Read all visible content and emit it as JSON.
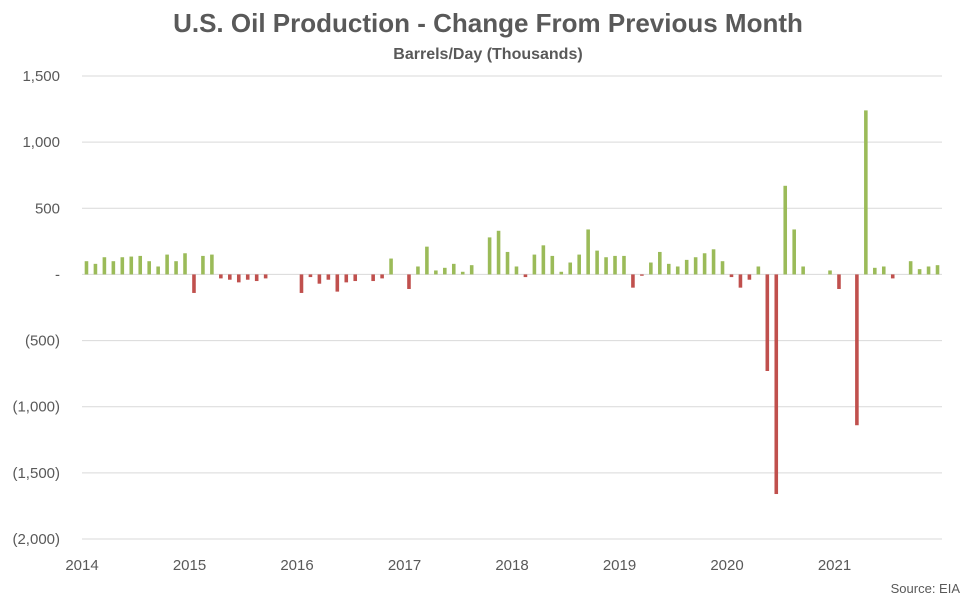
{
  "chart_data": {
    "type": "bar",
    "title": "U.S. Oil Production - Change From Previous Month",
    "subtitle": "Barrels/Day (Thousands)",
    "source": "Source: EIA",
    "ylim": [
      -2000,
      1500
    ],
    "y_ticks": [
      1500,
      1000,
      500,
      0,
      -500,
      -1000,
      -1500,
      -2000
    ],
    "y_tick_labels": [
      "1,500",
      "1,000",
      "500",
      "-",
      "(500)",
      "(1,000)",
      "(1,500)",
      "(2,000)"
    ],
    "x_tick_labels": [
      "2014",
      "2015",
      "2016",
      "2017",
      "2018",
      "2019",
      "2020",
      "2021"
    ],
    "grid": true,
    "colors": {
      "positive": "#9BBB59",
      "negative": "#C0504D",
      "grid": "#D9D9D9",
      "text": "#595959"
    },
    "categories": [
      "Jan 2014",
      "Feb 2014",
      "Mar 2014",
      "Apr 2014",
      "May 2014",
      "Jun 2014",
      "Jul 2014",
      "Aug 2014",
      "Sep 2014",
      "Oct 2014",
      "Nov 2014",
      "Dec 2014",
      "Jan 2015",
      "Feb 2015",
      "Mar 2015",
      "Apr 2015",
      "May 2015",
      "Jun 2015",
      "Jul 2015",
      "Aug 2015",
      "Sep 2015",
      "Oct 2015",
      "Nov 2015",
      "Dec 2015",
      "Jan 2016",
      "Feb 2016",
      "Mar 2016",
      "Apr 2016",
      "May 2016",
      "Jun 2016",
      "Jul 2016",
      "Aug 2016",
      "Sep 2016",
      "Oct 2016",
      "Nov 2016",
      "Dec 2016",
      "Jan 2017",
      "Feb 2017",
      "Mar 2017",
      "Apr 2017",
      "May 2017",
      "Jun 2017",
      "Jul 2017",
      "Aug 2017",
      "Sep 2017",
      "Oct 2017",
      "Nov 2017",
      "Dec 2017",
      "Jan 2018",
      "Feb 2018",
      "Mar 2018",
      "Apr 2018",
      "May 2018",
      "Jun 2018",
      "Jul 2018",
      "Aug 2018",
      "Sep 2018",
      "Oct 2018",
      "Nov 2018",
      "Dec 2018",
      "Jan 2019",
      "Feb 2019",
      "Mar 2019",
      "Apr 2019",
      "May 2019",
      "Jun 2019",
      "Jul 2019",
      "Aug 2019",
      "Sep 2019",
      "Oct 2019",
      "Nov 2019",
      "Dec 2019",
      "Jan 2020",
      "Feb 2020",
      "Mar 2020",
      "Apr 2020",
      "May 2020",
      "Jun 2020",
      "Jul 2020",
      "Aug 2020",
      "Sep 2020",
      "Oct 2020",
      "Nov 2020",
      "Dec 2020",
      "Jan 2021",
      "Feb 2021",
      "Mar 2021",
      "Apr 2021",
      "May 2021",
      "Jun 2021",
      "Jul 2021",
      "Aug 2021",
      "Sep 2021",
      "Oct 2021",
      "Nov 2021",
      "Dec 2021"
    ],
    "values": [
      100,
      80,
      130,
      100,
      130,
      135,
      140,
      100,
      60,
      150,
      100,
      160,
      -140,
      140,
      150,
      -30,
      -40,
      -60,
      -40,
      -50,
      -30,
      0,
      0,
      0,
      -140,
      -20,
      -70,
      -40,
      -130,
      -60,
      -50,
      0,
      -50,
      -30,
      120,
      0,
      -110,
      60,
      210,
      30,
      50,
      80,
      20,
      70,
      0,
      280,
      330,
      170,
      60,
      -20,
      150,
      220,
      140,
      20,
      90,
      150,
      340,
      180,
      130,
      140,
      140,
      -100,
      -10,
      90,
      170,
      80,
      60,
      110,
      130,
      160,
      190,
      100,
      -20,
      -100,
      -40,
      60,
      -730,
      -1660,
      670,
      340,
      60,
      0,
      0,
      30,
      -110,
      0,
      -1140,
      1240,
      50,
      60,
      -30,
      0,
      100,
      40,
      60,
      70
    ]
  }
}
